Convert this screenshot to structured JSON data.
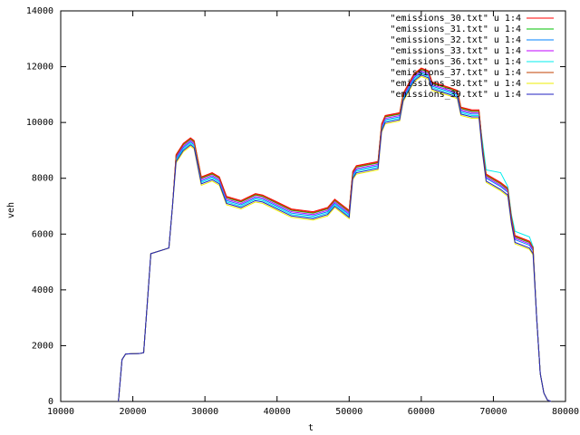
{
  "chart_data": {
    "type": "line",
    "x": [
      18000,
      18500,
      19000,
      21000,
      21500,
      22000,
      22500,
      25000,
      25500,
      26000,
      27000,
      28000,
      28500,
      29500,
      31000,
      32000,
      33000,
      35000,
      37000,
      38000,
      40000,
      42000,
      45000,
      47000,
      48000,
      50000,
      50500,
      51000,
      54000,
      54500,
      55000,
      57000,
      57500,
      59000,
      60000,
      61000,
      61500,
      64000,
      65000,
      65500,
      67000,
      68000,
      68500,
      69000,
      71000,
      72000,
      72500,
      73000,
      75000,
      75500,
      76000,
      76500,
      77000,
      77500,
      78000
    ],
    "xlim": [
      10000,
      80000
    ],
    "xticks": [
      10000,
      20000,
      30000,
      40000,
      50000,
      60000,
      70000,
      80000
    ],
    "ylim": [
      0,
      14000
    ],
    "yticks": [
      0,
      2000,
      4000,
      6000,
      8000,
      10000,
      12000,
      14000
    ],
    "x_label": "t",
    "y_label": "veh",
    "series": [
      {
        "name": "\"emissions_30.txt\" u 1:4",
        "color": "#ff0000",
        "values": [
          0,
          1500,
          1700,
          1720,
          1750,
          3500,
          5300,
          5500,
          7000,
          8850,
          9250,
          9450,
          9350,
          8050,
          8200,
          8050,
          7350,
          7200,
          7450,
          7400,
          7150,
          6900,
          6800,
          6950,
          7250,
          6850,
          8250,
          8450,
          8600,
          9950,
          10250,
          10350,
          11050,
          11750,
          11950,
          11850,
          11450,
          11250,
          11150,
          10550,
          10450,
          10450,
          9150,
          8150,
          7850,
          7650,
          6650,
          5950,
          5750,
          5550,
          3000,
          1000,
          300,
          50,
          0
        ]
      },
      {
        "name": "\"emissions_31.txt\" u 1:4",
        "color": "#00c000",
        "values": [
          0,
          1500,
          1700,
          1720,
          1750,
          3500,
          5300,
          5500,
          7000,
          8800,
          9200,
          9400,
          9300,
          8000,
          8150,
          8000,
          7300,
          7150,
          7400,
          7350,
          7100,
          6850,
          6750,
          6900,
          7200,
          6800,
          8200,
          8400,
          8550,
          9900,
          10200,
          10300,
          11000,
          11700,
          11900,
          11800,
          11400,
          11200,
          11100,
          10500,
          10400,
          10400,
          9100,
          8100,
          7800,
          7600,
          6600,
          5900,
          5700,
          5500,
          3000,
          1000,
          300,
          50,
          0
        ]
      },
      {
        "name": "\"emissions_32.txt\" u 1:4",
        "color": "#0080ff",
        "values": [
          0,
          1500,
          1700,
          1720,
          1750,
          3500,
          5300,
          5500,
          7000,
          8700,
          9100,
          9300,
          9200,
          7900,
          8050,
          7900,
          7200,
          7050,
          7300,
          7250,
          7000,
          6750,
          6650,
          6800,
          7100,
          6700,
          8100,
          8300,
          8450,
          9800,
          10100,
          10200,
          10900,
          11600,
          11800,
          11700,
          11300,
          11100,
          11000,
          10400,
          10300,
          10300,
          9000,
          8000,
          7700,
          7500,
          6500,
          5800,
          5600,
          5400,
          3000,
          1000,
          300,
          50,
          0
        ]
      },
      {
        "name": "\"emissions_33.txt\" u 1:4",
        "color": "#c000ff",
        "values": [
          0,
          1500,
          1700,
          1720,
          1750,
          3500,
          5300,
          5500,
          7000,
          8750,
          9150,
          9350,
          9250,
          7950,
          8100,
          7950,
          7250,
          7100,
          7350,
          7300,
          7050,
          6800,
          6700,
          6850,
          7150,
          6750,
          8150,
          8350,
          8500,
          9850,
          10150,
          10250,
          10950,
          11650,
          11850,
          11750,
          11350,
          11150,
          11050,
          10450,
          10350,
          10350,
          9050,
          8050,
          7750,
          7550,
          6550,
          5850,
          5650,
          5450,
          3000,
          1000,
          300,
          50,
          0
        ]
      },
      {
        "name": "\"emissions_36.txt\" u 1:4",
        "color": "#00eeee",
        "values": [
          0,
          1500,
          1700,
          1720,
          1750,
          3500,
          5300,
          5500,
          7000,
          8650,
          9050,
          9250,
          9150,
          7850,
          8000,
          7850,
          7150,
          7000,
          7250,
          7200,
          6950,
          6700,
          6600,
          6750,
          7050,
          6650,
          8050,
          8250,
          8400,
          9750,
          10050,
          10150,
          10850,
          11550,
          11750,
          11650,
          11250,
          11050,
          10950,
          10350,
          10250,
          10250,
          9300,
          8300,
          8200,
          7700,
          6700,
          6100,
          5900,
          5550,
          3000,
          1000,
          300,
          50,
          0
        ]
      },
      {
        "name": "\"emissions_37.txt\" u 1:4",
        "color": "#c04000",
        "values": [
          0,
          1500,
          1700,
          1720,
          1750,
          3500,
          5300,
          5500,
          7000,
          8820,
          9220,
          9420,
          9320,
          8020,
          8170,
          8020,
          7320,
          7170,
          7420,
          7370,
          7120,
          6870,
          6770,
          6920,
          7220,
          6820,
          8220,
          8420,
          8570,
          9920,
          10220,
          10320,
          11020,
          11720,
          11920,
          11820,
          11420,
          11220,
          11120,
          10520,
          10420,
          10420,
          9120,
          8120,
          7820,
          7620,
          6620,
          5920,
          5720,
          5520,
          3000,
          1000,
          300,
          50,
          0
        ]
      },
      {
        "name": "\"emissions_38.txt\" u 1:4",
        "color": "#eeee00",
        "values": [
          0,
          1500,
          1700,
          1720,
          1750,
          3500,
          5300,
          5500,
          7000,
          8550,
          8950,
          9150,
          9050,
          7750,
          7900,
          7750,
          7050,
          6900,
          7150,
          7100,
          6850,
          6600,
          6500,
          6650,
          6950,
          6550,
          7950,
          8150,
          8300,
          9650,
          9950,
          10050,
          10750,
          11450,
          11650,
          11550,
          11150,
          10950,
          10850,
          10250,
          10150,
          10150,
          8850,
          7850,
          7550,
          7350,
          6350,
          5650,
          5450,
          5250,
          3000,
          1000,
          300,
          50,
          0
        ]
      },
      {
        "name": "\"emissions_39.txt\" u 1:4",
        "color": "#2020c0",
        "values": [
          0,
          1500,
          1700,
          1720,
          1750,
          3500,
          5300,
          5500,
          7000,
          8600,
          9000,
          9200,
          9100,
          7800,
          7950,
          7800,
          7100,
          6950,
          7200,
          7150,
          6900,
          6650,
          6550,
          6700,
          7000,
          6600,
          8000,
          8200,
          8350,
          9700,
          10000,
          10100,
          10800,
          11500,
          11700,
          11600,
          11200,
          11000,
          10900,
          10300,
          10200,
          10200,
          8900,
          7900,
          7600,
          7400,
          6400,
          5700,
          5500,
          5300,
          3000,
          1000,
          300,
          50,
          0
        ]
      }
    ]
  }
}
